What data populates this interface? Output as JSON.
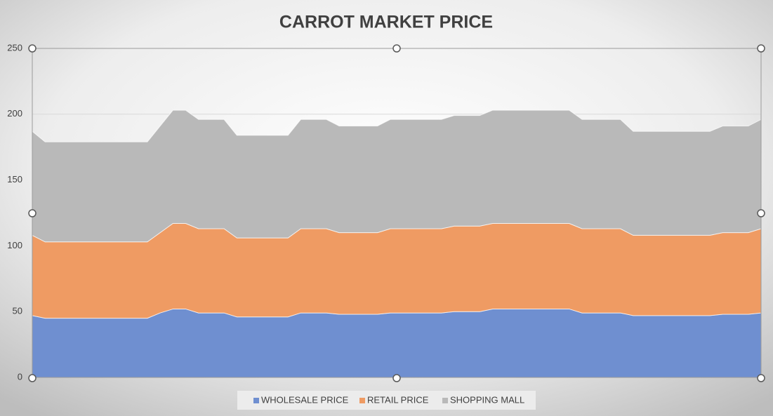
{
  "chart_data": {
    "type": "stacked_area",
    "title": "CARROT MARKET PRICE",
    "categories": [
      null,
      null,
      null,
      null,
      null,
      null,
      null,
      null,
      null,
      null,
      null,
      null,
      null,
      null,
      null,
      null,
      null,
      null,
      null,
      null,
      null,
      null,
      null,
      null,
      null,
      null,
      null,
      null,
      null,
      null,
      null,
      null,
      null,
      null,
      null,
      null,
      null,
      null,
      null,
      null,
      null,
      null,
      null,
      null,
      null,
      null,
      null,
      null,
      null,
      null,
      null,
      null,
      null,
      null,
      null,
      null,
      null,
      null
    ],
    "series": [
      {
        "name": "WHOLESALE PRICE",
        "color": "#6f8fd0",
        "values": [
          47,
          45,
          45,
          45,
          45,
          45,
          45,
          45,
          45,
          45,
          49,
          52,
          52,
          49,
          49,
          49,
          46,
          46,
          46,
          46,
          46,
          49,
          49,
          49,
          48,
          48,
          48,
          48,
          49,
          49,
          49,
          49,
          49,
          50,
          50,
          50,
          52,
          52,
          52,
          52,
          52,
          52,
          52,
          49,
          49,
          49,
          49,
          47,
          47,
          47,
          47,
          47,
          47,
          47,
          48,
          48,
          48,
          49
        ]
      },
      {
        "name": "RETAIL PRICE",
        "color": "#ef9b63",
        "values": [
          61,
          58,
          58,
          58,
          58,
          58,
          58,
          58,
          58,
          58,
          61,
          65,
          65,
          64,
          64,
          64,
          60,
          60,
          60,
          60,
          60,
          64,
          64,
          64,
          62,
          62,
          62,
          62,
          64,
          64,
          64,
          64,
          64,
          65,
          65,
          65,
          65,
          65,
          65,
          65,
          65,
          65,
          65,
          64,
          64,
          64,
          64,
          61,
          61,
          61,
          61,
          61,
          61,
          61,
          62,
          62,
          62,
          64
        ]
      },
      {
        "name": "SHOPPING MALL",
        "color": "#b9b9b9",
        "values": [
          79,
          76,
          76,
          76,
          76,
          76,
          76,
          76,
          76,
          76,
          81,
          86,
          86,
          83,
          83,
          83,
          78,
          78,
          78,
          78,
          78,
          83,
          83,
          83,
          81,
          81,
          81,
          81,
          83,
          83,
          83,
          83,
          83,
          84,
          84,
          84,
          86,
          86,
          86,
          86,
          86,
          86,
          86,
          83,
          83,
          83,
          83,
          79,
          79,
          79,
          79,
          79,
          79,
          79,
          81,
          81,
          81,
          83
        ]
      }
    ],
    "ylim": [
      0,
      250
    ],
    "yticks": [
      0,
      50,
      100,
      150,
      200,
      250
    ],
    "grid": true,
    "legend": "bottom"
  }
}
